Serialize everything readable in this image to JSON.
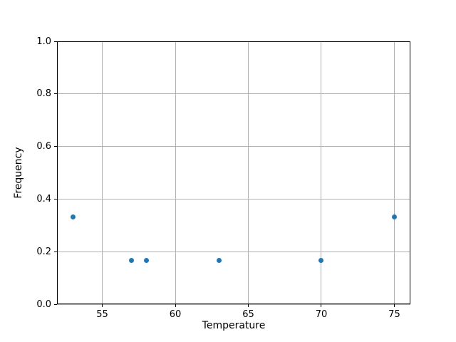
{
  "figure": {
    "background": "#ffffff"
  },
  "chart_data": {
    "type": "scatter",
    "title": "",
    "xlabel": "Temperature",
    "ylabel": "Frequency",
    "x": [
      53,
      57,
      58,
      63,
      70,
      75
    ],
    "y": [
      0.3333,
      0.1667,
      0.1667,
      0.1667,
      0.1667,
      0.3333
    ],
    "xlim": [
      51.9,
      76.1
    ],
    "ylim": [
      0.0,
      1.0
    ],
    "xticks": [
      55,
      60,
      65,
      70,
      75
    ],
    "xticklabels": [
      "55",
      "60",
      "65",
      "70",
      "75"
    ],
    "yticks": [
      0.0,
      0.2,
      0.4,
      0.6,
      0.8,
      1.0
    ],
    "yticklabels": [
      "0.0",
      "0.2",
      "0.4",
      "0.6",
      "0.8",
      "1.0"
    ],
    "grid": true,
    "legend": false,
    "marker_color": "#1f77b4",
    "grid_color": "#b0b0b0",
    "spine_color": "#000000"
  }
}
